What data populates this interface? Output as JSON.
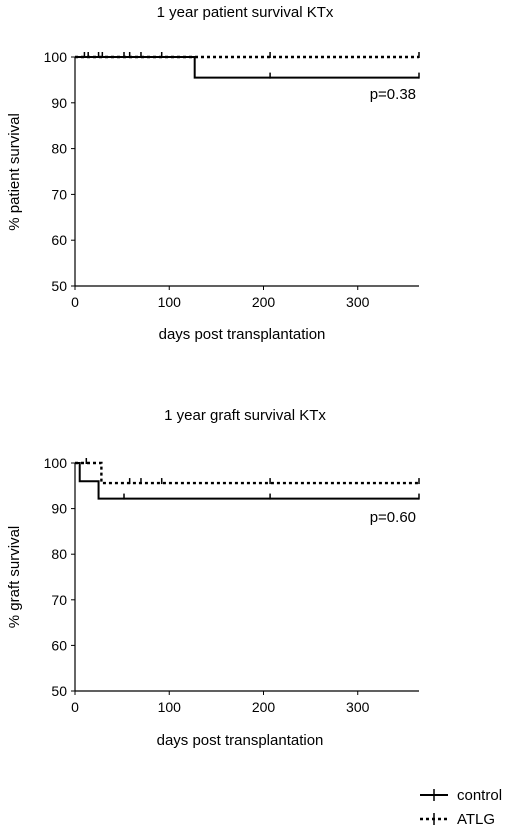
{
  "chart_data": [
    {
      "type": "line",
      "chart_kind": "kaplan-meier",
      "title": "1 year patient survival KTx",
      "xlabel": "days post transplantation",
      "ylabel": "% patient survival",
      "xlim": [
        0,
        365
      ],
      "ylim": [
        50,
        100
      ],
      "xticks": [
        0,
        100,
        200,
        300
      ],
      "yticks": [
        50,
        60,
        70,
        80,
        90,
        100
      ],
      "annotation": "p=0.38",
      "grid": false,
      "series": [
        {
          "name": "control",
          "style": "solid",
          "x": [
            0,
            127,
            365
          ],
          "y": [
            100,
            95.5,
            95.5
          ],
          "censor_x": [
            207,
            365
          ],
          "censor_y": [
            95.5,
            95.5
          ]
        },
        {
          "name": "ATLG",
          "style": "dotted",
          "x": [
            0,
            365
          ],
          "y": [
            100,
            100
          ],
          "censor_x": [
            10,
            14,
            25,
            29,
            52,
            58,
            70,
            92,
            207,
            365
          ],
          "censor_y": [
            100,
            100,
            100,
            100,
            100,
            100,
            100,
            100,
            100,
            100
          ]
        }
      ]
    },
    {
      "type": "line",
      "chart_kind": "kaplan-meier",
      "title": "1 year graft survival KTx",
      "xlabel": "days post transplantation",
      "ylabel": "% graft survival",
      "xlim": [
        0,
        365
      ],
      "ylim": [
        50,
        100
      ],
      "xticks": [
        0,
        100,
        200,
        300
      ],
      "yticks": [
        50,
        60,
        70,
        80,
        90,
        100
      ],
      "annotation": "p=0.60",
      "grid": false,
      "series": [
        {
          "name": "control",
          "style": "solid",
          "x": [
            0,
            5,
            25,
            365
          ],
          "y": [
            100,
            96,
            92.2,
            92.2
          ],
          "censor_x": [
            52,
            207,
            365
          ],
          "censor_y": [
            92.2,
            92.2,
            92.2
          ]
        },
        {
          "name": "ATLG",
          "style": "dotted",
          "x": [
            0,
            28,
            365
          ],
          "y": [
            100,
            95.6,
            95.6
          ],
          "censor_x": [
            12,
            58,
            70,
            92,
            207,
            365
          ],
          "censor_y": [
            100,
            95.6,
            95.6,
            95.6,
            95.6,
            95.6
          ]
        }
      ]
    }
  ],
  "legend": {
    "placement": "bottom-right",
    "items": [
      {
        "label": "control",
        "style": "solid"
      },
      {
        "label": "ATLG",
        "style": "dotted"
      }
    ]
  },
  "colors": {
    "ink": "#000000",
    "background": "#ffffff"
  }
}
